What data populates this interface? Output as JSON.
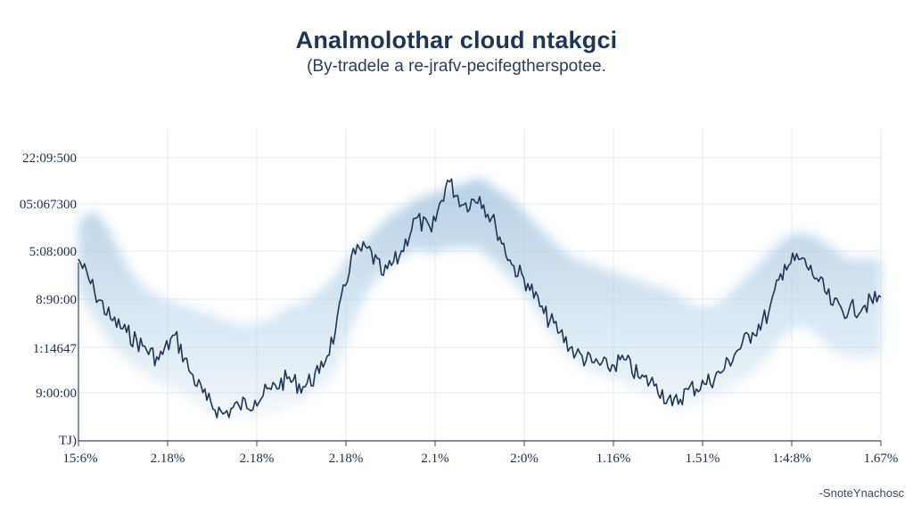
{
  "title": "Analmolothar cloud ntakgci",
  "subtitle": "(By-tradele a re-jrafv-pecifegtherspotee.",
  "source": "-SnoteYnachosc",
  "colors": {
    "line": "#1f3552",
    "band": "#a9c9e2",
    "grid": "#e6eaf0",
    "axis": "#3a4a60"
  },
  "chart_data": {
    "type": "line",
    "title": "Analmolothar cloud ntakgci",
    "subtitle": "(By-tradele a re-jrafv-pecifegtherspotee.",
    "y_tick_labels": [
      "22:09:500",
      "05:067300",
      "5:08:000",
      "8:90:00",
      "1:14647",
      "9:00:00",
      "TJ)"
    ],
    "x_tick_labels": [
      "15:6%",
      "2.18%",
      "2.18%",
      "2.18%",
      "2.1%",
      "2:0%",
      "1.16%",
      "1.51%",
      "1:4:8%",
      "1.67%"
    ],
    "ylim": [
      0,
      100
    ],
    "xlim": [
      0,
      100
    ],
    "grid": true,
    "series": [
      {
        "type": "line",
        "x": [
          0,
          2,
          4,
          6,
          8,
          10,
          12,
          14,
          16,
          18,
          20,
          22,
          24,
          26,
          28,
          30,
          32,
          34,
          36,
          38,
          40,
          42,
          44,
          46,
          48,
          50,
          52,
          54,
          56,
          58,
          60,
          62,
          64,
          66,
          68,
          70,
          72,
          74,
          76,
          78,
          80,
          82,
          84,
          86,
          88,
          90,
          92,
          94,
          96,
          98,
          100
        ],
        "values": [
          62,
          50,
          40,
          35,
          30,
          25,
          34,
          20,
          10,
          5,
          8,
          10,
          14,
          18,
          15,
          20,
          35,
          63,
          66,
          56,
          63,
          77,
          72,
          91,
          82,
          85,
          74,
          60,
          53,
          42,
          35,
          27,
          24,
          22,
          25,
          18,
          16,
          8,
          14,
          16,
          20,
          28,
          35,
          42,
          60,
          62,
          55,
          45,
          43,
          45,
          48
        ]
      },
      {
        "type": "area",
        "upper": [
          76,
          80,
          72,
          60,
          52,
          48,
          46,
          44,
          42,
          40,
          38,
          38,
          40,
          44,
          46,
          50,
          56,
          64,
          70,
          76,
          80,
          84,
          86,
          88,
          90,
          92,
          88,
          84,
          78,
          72,
          66,
          62,
          60,
          58,
          56,
          54,
          52,
          50,
          46,
          44,
          46,
          52,
          58,
          64,
          70,
          72,
          70,
          66,
          62,
          62,
          62
        ],
        "lower": [
          50,
          40,
          30,
          25,
          20,
          16,
          14,
          10,
          6,
          4,
          4,
          4,
          6,
          8,
          10,
          14,
          20,
          36,
          50,
          58,
          62,
          66,
          64,
          66,
          66,
          66,
          60,
          54,
          48,
          38,
          30,
          24,
          20,
          18,
          16,
          14,
          12,
          6,
          8,
          10,
          12,
          16,
          20,
          26,
          34,
          38,
          34,
          28,
          26,
          26,
          26
        ]
      }
    ]
  }
}
